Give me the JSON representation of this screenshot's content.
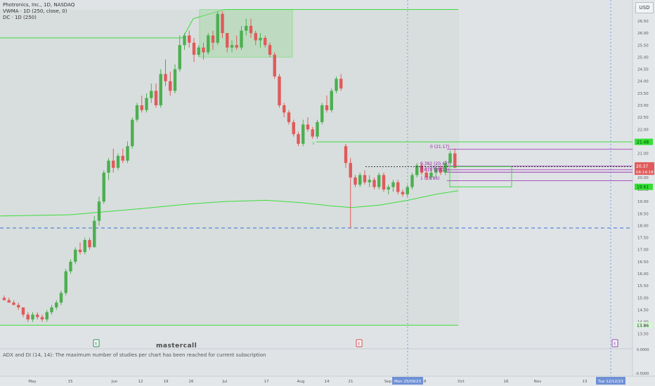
{
  "header": {
    "symbol": "Photronics, Inc., 1D, NASDAQ",
    "indicator_vwma": "VWMA · 1D (250, close, 0)",
    "indicator_dc": "DC · 1D (250)",
    "currency": "USD"
  },
  "panel": {
    "adx_message": "ADX and DI (14, 14): The maximum number of studies per chart has been reached for current subscription"
  },
  "price_labels": {
    "last_price": "20.37",
    "countdown": "04:14:18",
    "upper_green": "21.48",
    "lower_green": "19.61",
    "top_price": "26.98",
    "bottom_price": "13.86"
  },
  "fib_labels": [
    "0 (21.17)",
    "0.382 (20.47)",
    "0.5 (20.32)",
    "0.618 (20.22)",
    "1 (19.86)"
  ],
  "markers": {
    "earnings_1": "E",
    "earnings_2": "E",
    "earnings_3": "E",
    "watermark": "mastercall"
  },
  "crosshair": {
    "date_label": "Mon 25/09/23",
    "future_label": "Tue 12/12/23"
  },
  "colors": {
    "up": "#4caf50",
    "down": "#e05a5a",
    "background": "#dfe3e6",
    "fib": "#9c27b0",
    "vwma": "#3ddc3d",
    "dashed_blue": "#3a6fd8"
  },
  "chart_data": {
    "type": "candlestick",
    "title": "Photronics, Inc., 1D, NASDAQ",
    "y_ticks": [
      "26.50",
      "26.00",
      "25.50",
      "25.00",
      "24.50",
      "24.00",
      "23.50",
      "23.00",
      "22.50",
      "22.00",
      "21.50",
      "21.00",
      "20.50",
      "20.00",
      "19.50",
      "19.00",
      "18.50",
      "18.00",
      "17.50",
      "17.00",
      "16.50",
      "16.00",
      "15.50",
      "15.00",
      "14.50",
      "14.00",
      "13.50"
    ],
    "x_ticks": [
      "May",
      "15",
      "Jun",
      "12",
      "19",
      "26",
      "Jul",
      "17",
      "Aug",
      "14",
      "21",
      "Sep",
      "18",
      "Oct",
      "16",
      "Nov",
      "13",
      "Dec",
      "18"
    ],
    "ylim": [
      13.2,
      27.2
    ],
    "candles": [
      [
        15.0,
        15.1,
        14.9,
        14.9
      ],
      [
        14.9,
        15.0,
        14.8,
        14.8
      ],
      [
        14.8,
        14.9,
        14.7,
        14.7
      ],
      [
        14.7,
        14.8,
        14.5,
        14.6
      ],
      [
        14.6,
        14.6,
        14.2,
        14.3
      ],
      [
        14.3,
        14.4,
        14.0,
        14.1
      ],
      [
        14.1,
        14.4,
        14.0,
        14.3
      ],
      [
        14.3,
        14.4,
        14.1,
        14.2
      ],
      [
        14.2,
        14.3,
        14.0,
        14.1
      ],
      [
        14.1,
        14.5,
        14.0,
        14.4
      ],
      [
        14.4,
        14.7,
        14.3,
        14.6
      ],
      [
        14.6,
        14.9,
        14.5,
        14.8
      ],
      [
        14.8,
        15.3,
        14.7,
        15.2
      ],
      [
        15.2,
        16.2,
        15.1,
        16.1
      ],
      [
        16.1,
        16.6,
        16.0,
        16.5
      ],
      [
        16.5,
        17.1,
        16.4,
        17.0
      ],
      [
        17.0,
        17.3,
        16.8,
        16.9
      ],
      [
        16.9,
        17.5,
        16.8,
        17.4
      ],
      [
        17.4,
        17.5,
        17.0,
        17.1
      ],
      [
        17.1,
        18.4,
        17.1,
        18.2
      ],
      [
        18.2,
        19.2,
        18.0,
        19.0
      ],
      [
        19.0,
        20.3,
        18.9,
        20.2
      ],
      [
        20.2,
        20.8,
        19.9,
        20.7
      ],
      [
        20.7,
        21.2,
        20.2,
        20.4
      ],
      [
        20.4,
        21.0,
        20.3,
        20.9
      ],
      [
        20.9,
        21.2,
        20.6,
        20.7
      ],
      [
        20.7,
        21.5,
        20.6,
        21.3
      ],
      [
        21.3,
        22.5,
        21.2,
        22.4
      ],
      [
        22.4,
        23.1,
        22.3,
        23.0
      ],
      [
        23.0,
        23.4,
        22.7,
        22.8
      ],
      [
        22.8,
        23.5,
        22.7,
        23.3
      ],
      [
        23.3,
        23.9,
        23.1,
        23.6
      ],
      [
        23.6,
        23.9,
        22.9,
        23.0
      ],
      [
        23.0,
        24.5,
        22.9,
        24.3
      ],
      [
        24.3,
        24.9,
        23.8,
        24.0
      ],
      [
        24.0,
        24.4,
        23.4,
        23.6
      ],
      [
        23.6,
        24.7,
        23.5,
        24.5
      ],
      [
        24.5,
        25.9,
        24.4,
        25.5
      ],
      [
        25.5,
        26.0,
        25.3,
        25.9
      ],
      [
        25.9,
        26.1,
        25.4,
        25.6
      ],
      [
        25.6,
        25.8,
        24.8,
        25.1
      ],
      [
        25.1,
        25.5,
        25.0,
        25.4
      ],
      [
        25.4,
        25.6,
        24.9,
        25.2
      ],
      [
        25.2,
        26.0,
        25.1,
        25.9
      ],
      [
        25.9,
        26.1,
        25.3,
        25.6
      ],
      [
        25.6,
        26.9,
        25.5,
        26.8
      ],
      [
        26.8,
        26.9,
        25.8,
        26.0
      ],
      [
        26.0,
        26.0,
        25.2,
        25.4
      ],
      [
        25.4,
        25.7,
        25.2,
        25.5
      ],
      [
        25.5,
        25.9,
        25.3,
        25.4
      ],
      [
        25.4,
        26.3,
        25.3,
        26.1
      ],
      [
        26.1,
        26.6,
        25.9,
        26.3
      ],
      [
        26.3,
        26.6,
        25.8,
        26.0
      ],
      [
        26.0,
        26.1,
        25.5,
        25.7
      ],
      [
        25.7,
        26.0,
        25.4,
        25.8
      ],
      [
        25.8,
        25.9,
        25.4,
        25.5
      ],
      [
        25.5,
        25.6,
        25.0,
        25.1
      ],
      [
        25.1,
        25.2,
        24.1,
        24.2
      ],
      [
        24.2,
        24.3,
        22.9,
        23.0
      ],
      [
        23.0,
        23.1,
        22.5,
        22.7
      ],
      [
        22.7,
        22.8,
        22.2,
        22.3
      ],
      [
        22.3,
        22.4,
        21.7,
        21.8
      ],
      [
        21.8,
        21.9,
        21.3,
        21.4
      ],
      [
        21.4,
        22.4,
        21.3,
        22.2
      ],
      [
        22.2,
        22.5,
        21.9,
        22.0
      ],
      [
        22.0,
        22.1,
        21.6,
        21.7
      ],
      [
        21.7,
        22.4,
        21.6,
        22.3
      ],
      [
        22.3,
        23.1,
        22.2,
        23.0
      ],
      [
        23.0,
        23.4,
        22.7,
        22.8
      ],
      [
        22.8,
        23.7,
        22.7,
        23.6
      ],
      [
        23.6,
        24.2,
        23.5,
        24.1
      ],
      [
        24.1,
        24.3,
        23.6,
        23.7
      ],
      [
        21.3,
        21.4,
        20.4,
        20.6
      ],
      [
        20.6,
        20.8,
        17.9,
        20.0
      ],
      [
        20.0,
        20.1,
        19.6,
        19.7
      ],
      [
        19.7,
        20.2,
        19.6,
        20.1
      ],
      [
        20.1,
        20.3,
        19.7,
        19.8
      ],
      [
        19.8,
        20.1,
        19.6,
        19.9
      ],
      [
        19.9,
        20.0,
        19.5,
        19.6
      ],
      [
        19.6,
        20.2,
        19.5,
        20.1
      ],
      [
        20.1,
        20.2,
        19.4,
        19.5
      ],
      [
        19.5,
        19.7,
        19.3,
        19.6
      ],
      [
        19.6,
        19.9,
        19.4,
        19.8
      ],
      [
        19.8,
        19.9,
        19.3,
        19.4
      ],
      [
        19.4,
        19.5,
        19.2,
        19.3
      ],
      [
        19.3,
        19.7,
        19.2,
        19.6
      ],
      [
        19.6,
        20.2,
        19.5,
        20.1
      ],
      [
        20.1,
        20.6,
        20.0,
        20.5
      ],
      [
        20.5,
        20.6,
        20.1,
        20.2
      ],
      [
        20.2,
        20.4,
        19.9,
        20.0
      ],
      [
        20.0,
        20.3,
        19.9,
        20.2
      ],
      [
        20.2,
        20.5,
        20.0,
        20.4
      ],
      [
        20.4,
        20.5,
        20.1,
        20.2
      ],
      [
        20.2,
        20.7,
        20.1,
        20.6
      ],
      [
        20.6,
        21.1,
        20.5,
        21.0
      ],
      [
        21.0,
        21.2,
        20.4,
        20.4
      ]
    ],
    "overlays": {
      "donchian_upper": 26.98,
      "donchian_lower": 13.86,
      "green_level_upper": 21.48,
      "green_level_lower": 19.61,
      "blue_dashed_level": 17.9,
      "fib_levels": [
        21.17,
        20.47,
        20.32,
        20.22,
        19.86
      ]
    },
    "grid": false,
    "legend_position": "top-left"
  }
}
